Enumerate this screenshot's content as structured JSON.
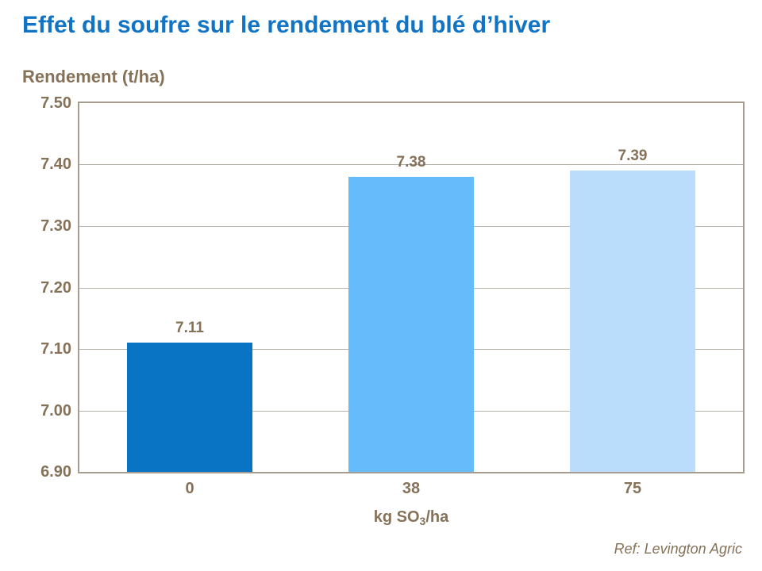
{
  "colors": {
    "title_blue": "#1173c4",
    "text_brown": "#857259",
    "grid_line": "#b6b1a9",
    "plot_border": "#a69c8f",
    "bars": [
      "#0a74c4",
      "#66bbfb",
      "#b9ddfb"
    ]
  },
  "chart_data": {
    "type": "bar",
    "title": "Effet du soufre sur le rendement du blé d’hiver",
    "ylabel": "Rendement (t/ha)",
    "xlabel_pre": "kg SO",
    "xlabel_sub": "3",
    "xlabel_post": "/ha",
    "categories": [
      "0",
      "38",
      "75"
    ],
    "values": [
      7.11,
      7.38,
      7.39
    ],
    "value_labels": [
      "7.11",
      "7.38",
      "7.39"
    ],
    "ylim": [
      6.9,
      7.5
    ],
    "yticks": [
      {
        "value": 7.5,
        "label": "7.50"
      },
      {
        "value": 7.4,
        "label": "7.40"
      },
      {
        "value": 7.3,
        "label": "7.30"
      },
      {
        "value": 7.2,
        "label": "7.20"
      },
      {
        "value": 7.1,
        "label": "7.10"
      },
      {
        "value": 7.0,
        "label": "7.00"
      },
      {
        "value": 6.9,
        "label": "6.90"
      }
    ],
    "grid": "horizontal",
    "legend_position": "none",
    "source": "Ref: Levington Agric"
  }
}
